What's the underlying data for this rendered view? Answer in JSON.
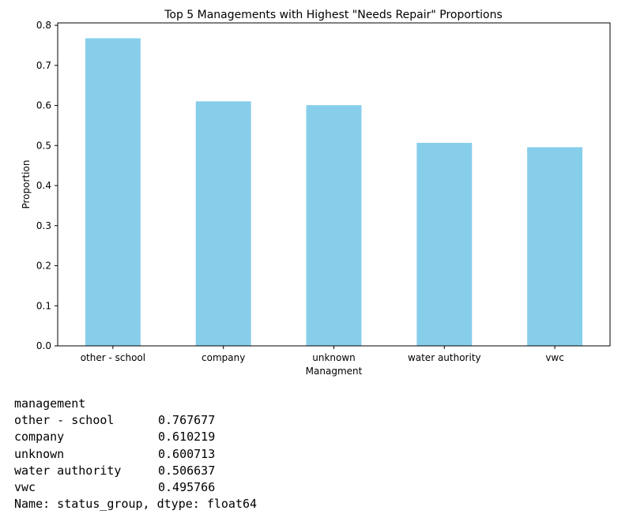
{
  "chart_data": {
    "type": "bar",
    "title": "Top 5 Managements with Highest \"Needs Repair\" Proportions",
    "xlabel": "Managment",
    "ylabel": "Proportion",
    "categories": [
      "other - school",
      "company",
      "unknown",
      "water authority",
      "vwc"
    ],
    "values": [
      0.767677,
      0.610219,
      0.600713,
      0.506637,
      0.495766
    ],
    "ylim": [
      0,
      0.806
    ],
    "yticks": [
      "0.0",
      "0.1",
      "0.2",
      "0.3",
      "0.4",
      "0.5",
      "0.6",
      "0.7",
      "0.8"
    ],
    "bar_color": "#87ceeb",
    "grid": false,
    "legend": "none"
  },
  "output": {
    "header": "management",
    "rows": [
      {
        "label": "other - school",
        "value": "0.767677"
      },
      {
        "label": "company",
        "value": "0.610219"
      },
      {
        "label": "unknown",
        "value": "0.600713"
      },
      {
        "label": "water authority",
        "value": "0.506637"
      },
      {
        "label": "vwc",
        "value": "0.495766"
      }
    ],
    "footer": "Name: status_group, dtype: float64"
  }
}
